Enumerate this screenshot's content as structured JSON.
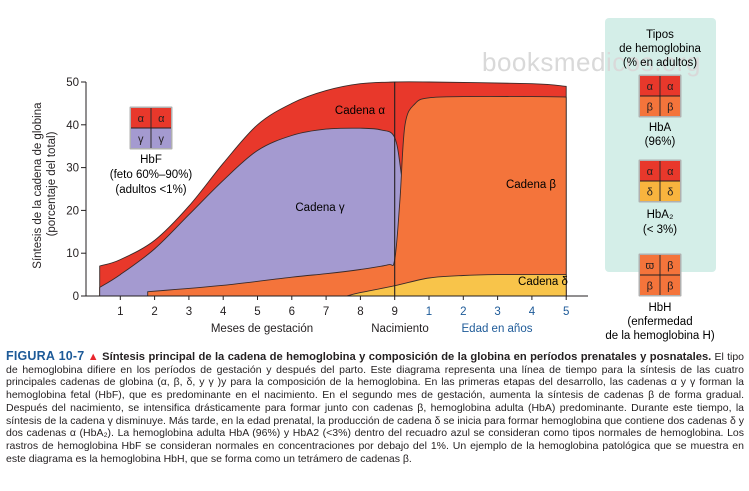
{
  "watermark": "booksmedicos.org",
  "chart_data": {
    "type": "area",
    "ylabel": "Síntesis de la cadena de globina\n(porcentaje del total)",
    "y_ticks": [
      0,
      10,
      20,
      30,
      40,
      50
    ],
    "ylim": [
      0,
      50
    ],
    "x_ticks_gestation": [
      "1",
      "2",
      "3",
      "4",
      "5",
      "6",
      "7",
      "8",
      "9"
    ],
    "x_ticks_years": [
      "1",
      "2",
      "3",
      "4",
      "5"
    ],
    "xlabel_gestation": "Meses de gestación",
    "xlabel_birth": "Nacimiento",
    "xlabel_years": "Edad en años",
    "birth_month": 9,
    "series": [
      {
        "name": "Cadena α",
        "color": "#e8382b",
        "points": [
          [
            0.4,
            7
          ],
          [
            1,
            8.5
          ],
          [
            2,
            13
          ],
          [
            3,
            21
          ],
          [
            4,
            31
          ],
          [
            5,
            40
          ],
          [
            6,
            45
          ],
          [
            7,
            48
          ],
          [
            8,
            49.6
          ],
          [
            9,
            50
          ],
          [
            10,
            50
          ],
          [
            13,
            49.6
          ],
          [
            14,
            49
          ]
        ]
      },
      {
        "name": "Cadena γ",
        "color": "#a49ad0",
        "points": [
          [
            0.4,
            2
          ],
          [
            1,
            5
          ],
          [
            2,
            11
          ],
          [
            3,
            19
          ],
          [
            4,
            27
          ],
          [
            5,
            34
          ],
          [
            6,
            37.5
          ],
          [
            7,
            39
          ],
          [
            8,
            39.2
          ],
          [
            8.6,
            38.8
          ],
          [
            9,
            37
          ],
          [
            9.2,
            28
          ],
          [
            9.4,
            15
          ],
          [
            9.6,
            7
          ],
          [
            10,
            3.5
          ],
          [
            11,
            2
          ],
          [
            13,
            1.6
          ],
          [
            14,
            1.4
          ]
        ]
      },
      {
        "name": "Cadena β",
        "color": "#f4743b",
        "points": [
          [
            1.8,
            1
          ],
          [
            4,
            2.5
          ],
          [
            6,
            4.4
          ],
          [
            7,
            5.2
          ],
          [
            8,
            6.2
          ],
          [
            8.8,
            7.3
          ],
          [
            9,
            8.5
          ],
          [
            9.15,
            22
          ],
          [
            9.3,
            40
          ],
          [
            9.6,
            45
          ],
          [
            10,
            46.3
          ],
          [
            11,
            46.6
          ],
          [
            13,
            46.6
          ],
          [
            14,
            46.5
          ]
        ]
      },
      {
        "name": "Cadena δ",
        "color": "#f8c44a",
        "points": [
          [
            7.6,
            0
          ],
          [
            8,
            0.8
          ],
          [
            9,
            2.4
          ],
          [
            10,
            4.2
          ],
          [
            11,
            4.8
          ],
          [
            12,
            5
          ],
          [
            13,
            5
          ],
          [
            14,
            5
          ]
        ]
      }
    ],
    "annotations": [
      {
        "id": "hbf",
        "label": "HbF",
        "desc_1": "(feto 60%–90%)",
        "desc_2": "(adultos <1%)",
        "cells": [
          [
            "α",
            "α"
          ],
          [
            "γ",
            "γ"
          ]
        ],
        "colors": [
          [
            "#e8382b",
            "#e8382b"
          ],
          [
            "#a49ad0",
            "#a49ad0"
          ]
        ]
      }
    ]
  },
  "legend": {
    "title_1": "Tipos",
    "title_2": "de hemoglobina",
    "title_3": "(% en adultos)",
    "items": [
      {
        "name": "HbA",
        "pct": "(96%)",
        "cells": [
          [
            "α",
            "α"
          ],
          [
            "β",
            "β"
          ]
        ],
        "colors": [
          [
            "#e8382b",
            "#e8382b"
          ],
          [
            "#f4743b",
            "#f4743b"
          ]
        ]
      },
      {
        "name": "HbA₂",
        "pct": "(< 3%)",
        "cells": [
          [
            "α",
            "α"
          ],
          [
            "δ",
            "δ"
          ]
        ],
        "colors": [
          [
            "#e8382b",
            "#e8382b"
          ],
          [
            "#f8b43e",
            "#f8b43e"
          ]
        ]
      }
    ],
    "hbh": {
      "name": "HbH",
      "desc_1": "(enfermedad",
      "desc_2": "de la hemoglobina H)",
      "cells": [
        [
          "ϖ",
          "β"
        ],
        [
          "β",
          "β"
        ]
      ],
      "colors": [
        [
          "#f4743b",
          "#f4743b"
        ],
        [
          "#f4743b",
          "#f4743b"
        ]
      ]
    }
  },
  "caption": {
    "label": "FIGURA 10-7",
    "triangle": "▲",
    "title": "Síntesis principal de la cadena de hemoglobina y composición de la globina en períodos prenatales y posnatales.",
    "body": "El tipo de hemoglobina difiere en los períodos de gestación y después del parto. Este diagrama representa una línea de tiempo para la síntesis de las cuatro principales cadenas de globina (α, β, δ, y γ )y para la composición de la hemoglobina. En las primeras etapas del desarrollo, las cadenas α y γ forman la hemoglobina fetal (HbF), que es predominante en el nacimiento. En el segundo mes de gestación, aumenta la síntesis de cadenas β de forma gradual. Después del nacimiento, se intensifica drásticamente para formar junto con cadenas β, hemoglobina adulta (HbA) predominante. Durante este tiempo, la síntesis de la cadena γ disminuye. Más tarde, en la edad prenatal, la producción de cadena δ se inicia para formar hemoglobina que contiene dos cadenas δ y dos cadenas α (HbA₂). La hemoglobina adulta HbA (96%) y HbA2 (<3%) dentro del recuadro azul se consideran como tipos normales de hemoglobina. Los rastros de hemoglobina HbF se consideran normales en concentraciones por debajo del 1%. Un ejemplo de la hemoglobina patológica que se muestra en este diagrama es la hemoglobina HbH, que se forma como un tetrámero de cadenas β."
  }
}
